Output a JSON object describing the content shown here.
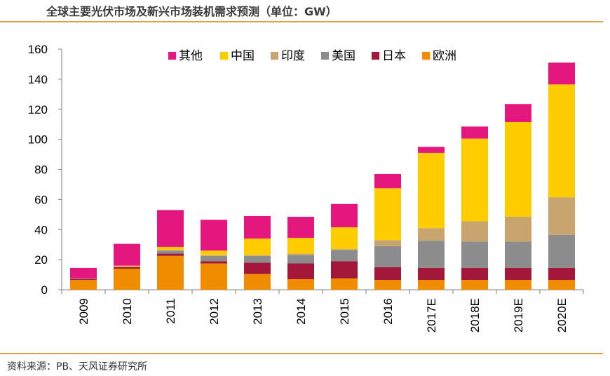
{
  "header": {
    "title": "全球主要光伏市场及新兴市场装机需求预测（单位：GW）"
  },
  "footer": {
    "source": "资料来源：PB、天风证券研究所"
  },
  "colors": {
    "other": "#e3177e",
    "china": "#ffcc00",
    "india": "#c8a46e",
    "usa": "#8c8c8c",
    "japan": "#a3173a",
    "europe": "#f08c00",
    "rule": "#e3a048"
  },
  "chart_data": {
    "type": "bar",
    "stacked": true,
    "title": "全球主要光伏市场及新兴市场装机需求预测（单位：GW）",
    "xlabel": "",
    "ylabel": "",
    "ylim": [
      0,
      160
    ],
    "yticks": [
      0,
      20,
      40,
      60,
      80,
      100,
      120,
      140,
      160
    ],
    "grid": false,
    "legend_position": "top",
    "categories": [
      "2009",
      "2010",
      "2011",
      "2012",
      "2013",
      "2014",
      "2015",
      "2016",
      "2017E",
      "2018E",
      "2019E",
      "2020E"
    ],
    "series": [
      {
        "name": "欧洲",
        "key": "europe",
        "values": [
          6.5,
          14,
          22.5,
          17.5,
          10.5,
          7,
          7.5,
          6.5,
          6.5,
          6.5,
          6.5,
          6.5
        ]
      },
      {
        "name": "日本",
        "key": "japan",
        "values": [
          0.5,
          1,
          1.5,
          1.5,
          7.5,
          10.5,
          11.5,
          8.5,
          8,
          8,
          8,
          8
        ]
      },
      {
        "name": "美国",
        "key": "usa",
        "values": [
          0.5,
          0.5,
          2,
          3.5,
          4.5,
          5.5,
          7.5,
          14,
          18,
          17.5,
          17.5,
          22
        ]
      },
      {
        "name": "印度",
        "key": "india",
        "values": [
          0,
          0,
          0.5,
          0.5,
          0.5,
          1,
          0.5,
          4,
          8.5,
          13.5,
          16.5,
          25
        ]
      },
      {
        "name": "中国",
        "key": "china",
        "values": [
          0,
          0.5,
          2,
          3,
          11,
          10.5,
          14.5,
          34.5,
          50,
          55,
          63,
          75
        ]
      },
      {
        "name": "其他",
        "key": "other",
        "values": [
          7,
          14.5,
          24.5,
          20.5,
          15,
          14,
          15.5,
          9.5,
          4,
          8,
          12,
          14.5
        ]
      }
    ],
    "legend_order": [
      "其他",
      "中国",
      "印度",
      "美国",
      "日本",
      "欧洲"
    ]
  }
}
